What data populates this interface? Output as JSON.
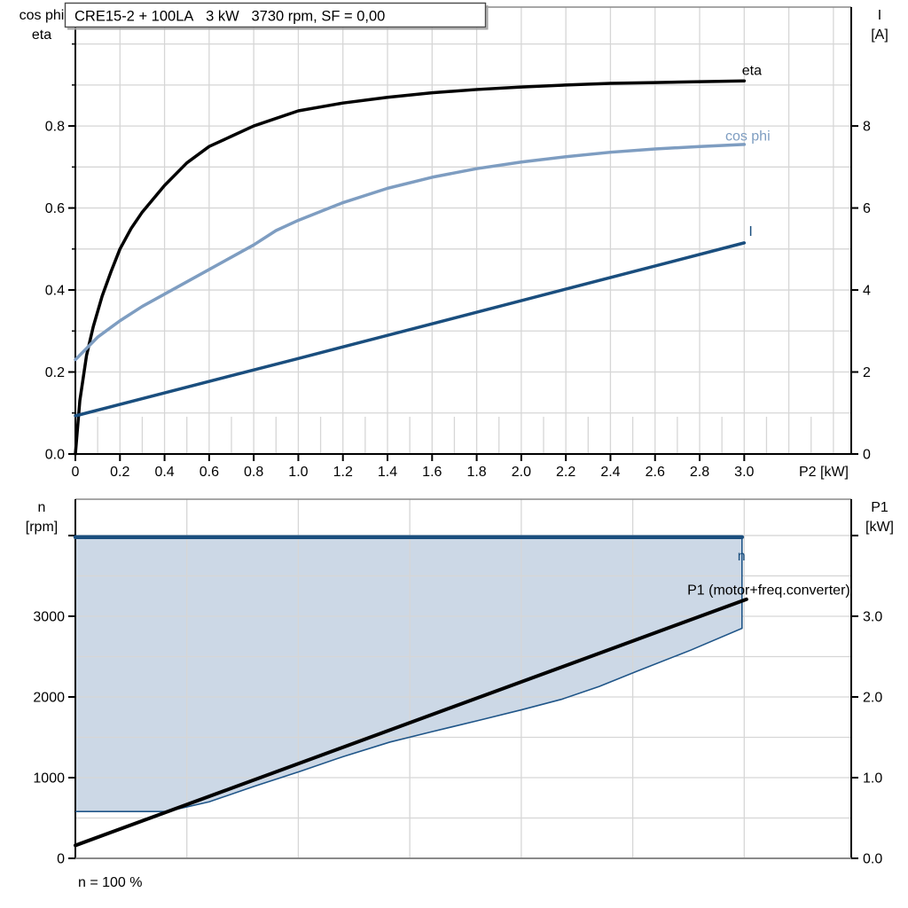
{
  "page": {
    "background": "#ffffff"
  },
  "colors": {
    "black": "#000000",
    "steel_blue": "#7e9dc1",
    "dark_blue": "#1a4e7e",
    "region_fill": "#ccd8e6",
    "grid": "#d6d6d6",
    "border_gray": "#8a8a8a",
    "title_border": "#4a4a4a",
    "title_shadow": "#a6a6a6"
  },
  "chart_data": [
    {
      "type": "line",
      "title": "CRE15-2 + 100LA   3 kW   3730 rpm, SF = 0,00",
      "xlabel": "P2 [kW]",
      "left_axis_title": [
        "cos phi",
        "eta"
      ],
      "right_axis_title": [
        "I",
        "[A]"
      ],
      "xlim": [
        0,
        3.48
      ],
      "ylim_left": [
        0,
        1.09
      ],
      "ylim_right": [
        0,
        10.9
      ],
      "grid": {
        "v_major_step": 0.2,
        "v_minor_step": 0.2,
        "v_minor_offset": 0.1,
        "h_step": 0.1
      },
      "x_ticks": {
        "values": [
          0,
          0.2,
          0.4,
          0.6,
          0.8,
          1.0,
          1.2,
          1.4,
          1.6,
          1.8,
          2.0,
          2.2,
          2.4,
          2.6,
          2.8,
          3.0
        ],
        "labels": [
          "0",
          "0.2",
          "0.4",
          "0.6",
          "0.8",
          "1.0",
          "1.2",
          "1.4",
          "1.6",
          "1.8",
          "2.0",
          "2.2",
          "2.4",
          "2.6",
          "2.8",
          "3.0"
        ]
      },
      "left_ticks": {
        "minor_step": 0.1,
        "values": [
          0,
          0.2,
          0.4,
          0.6,
          0.8
        ],
        "labels": [
          "0.0",
          "0.2",
          "0.4",
          "0.6",
          "0.8"
        ]
      },
      "right_ticks": {
        "values": [
          0,
          2,
          4,
          6,
          8
        ],
        "labels": [
          "0",
          "2",
          "4",
          "6",
          "8"
        ]
      },
      "series": [
        {
          "name": "eta",
          "axis": "left",
          "color": "#000000",
          "width": 3.5,
          "x": [
            0,
            0.02,
            0.05,
            0.08,
            0.12,
            0.16,
            0.2,
            0.25,
            0.3,
            0.4,
            0.5,
            0.6,
            0.7,
            0.8,
            1.0,
            1.2,
            1.4,
            1.6,
            1.8,
            2.0,
            2.2,
            2.4,
            2.6,
            2.8,
            3.0
          ],
          "y": [
            0,
            0.13,
            0.24,
            0.31,
            0.385,
            0.445,
            0.5,
            0.55,
            0.59,
            0.655,
            0.71,
            0.75,
            0.775,
            0.8,
            0.837,
            0.856,
            0.87,
            0.881,
            0.889,
            0.895,
            0.9,
            0.904,
            0.906,
            0.908,
            0.91
          ],
          "label": {
            "text": "eta",
            "x": 2.99,
            "y": 0.925,
            "anchor": "start"
          }
        },
        {
          "name": "cos phi",
          "axis": "left",
          "color": "#7e9dc1",
          "width": 3.5,
          "x": [
            0,
            0.1,
            0.2,
            0.3,
            0.4,
            0.5,
            0.6,
            0.7,
            0.8,
            0.9,
            1.0,
            1.2,
            1.4,
            1.6,
            1.8,
            2.0,
            2.2,
            2.4,
            2.6,
            2.8,
            3.0
          ],
          "y": [
            0.23,
            0.285,
            0.325,
            0.36,
            0.39,
            0.42,
            0.45,
            0.48,
            0.51,
            0.545,
            0.57,
            0.613,
            0.648,
            0.675,
            0.696,
            0.712,
            0.725,
            0.736,
            0.744,
            0.75,
            0.755
          ],
          "label": {
            "text": "cos phi",
            "x": 2.915,
            "y": 0.765,
            "anchor": "start"
          }
        },
        {
          "name": "I",
          "axis": "right",
          "color": "#1a4e7e",
          "width": 3.5,
          "x": [
            0,
            1.0,
            2.0,
            3.0
          ],
          "y": [
            0.93,
            2.33,
            3.74,
            5.15
          ],
          "label": {
            "text": "I",
            "x": 3.02,
            "y": 5.32,
            "anchor": "start"
          }
        }
      ]
    },
    {
      "type": "line",
      "xlabel": "",
      "left_axis_title": [
        "n",
        "[rpm]"
      ],
      "right_axis_title": [
        "P1",
        "[kW]"
      ],
      "footer": "n = 100 %",
      "xlim": [
        0,
        3.48
      ],
      "ylim_left": [
        0,
        4450
      ],
      "ylim_right": [
        0,
        4.45
      ],
      "grid": {
        "v_major_step": 0.5,
        "h_step": 0.5
      },
      "x_ticks": {
        "values": [],
        "labels": []
      },
      "left_ticks": {
        "values": [
          0,
          1000,
          2000,
          3000,
          4000
        ],
        "labels": [
          "0",
          "1000",
          "2000",
          "3000",
          ""
        ]
      },
      "right_ticks": {
        "values": [
          0,
          1.0,
          2.0,
          3.0,
          4.0
        ],
        "labels": [
          "0.0",
          "1.0",
          "2.0",
          "3.0",
          ""
        ]
      },
      "region": {
        "name": "speed-control-range",
        "fill": "#ccd8e6",
        "line_color": "#1f5588",
        "points_kw": [
          [
            0,
            0.58
          ],
          [
            0.41,
            0.58
          ],
          [
            0.6,
            0.7
          ],
          [
            0.81,
            0.9
          ],
          [
            1.01,
            1.08
          ],
          [
            1.2,
            1.26
          ],
          [
            1.41,
            1.44
          ],
          [
            1.6,
            1.57
          ],
          [
            1.81,
            1.71
          ],
          [
            2.0,
            1.84
          ],
          [
            2.18,
            1.97
          ],
          [
            2.35,
            2.13
          ],
          [
            2.52,
            2.32
          ],
          [
            2.76,
            2.58
          ],
          [
            2.99,
            2.85
          ],
          [
            2.99,
            3.98
          ]
        ],
        "close_point": [
          0,
          3.98
        ]
      },
      "series": [
        {
          "name": "n",
          "axis": "left",
          "color": "#1a4e7e",
          "width": 4.5,
          "x": [
            0,
            2.99
          ],
          "y": [
            3980,
            3980
          ],
          "label": {
            "text": "n",
            "x": 2.97,
            "y": 3690,
            "anchor": "start"
          }
        },
        {
          "name": "P1 (motor+freq.converter)",
          "axis": "right",
          "color": "#000000",
          "width": 4,
          "x": [
            0,
            3.01
          ],
          "y": [
            0.16,
            3.21
          ],
          "label": {
            "text": "P1 (motor+freq.converter)",
            "x": 3.475,
            "y": 3.27,
            "anchor": "end"
          }
        }
      ]
    }
  ]
}
